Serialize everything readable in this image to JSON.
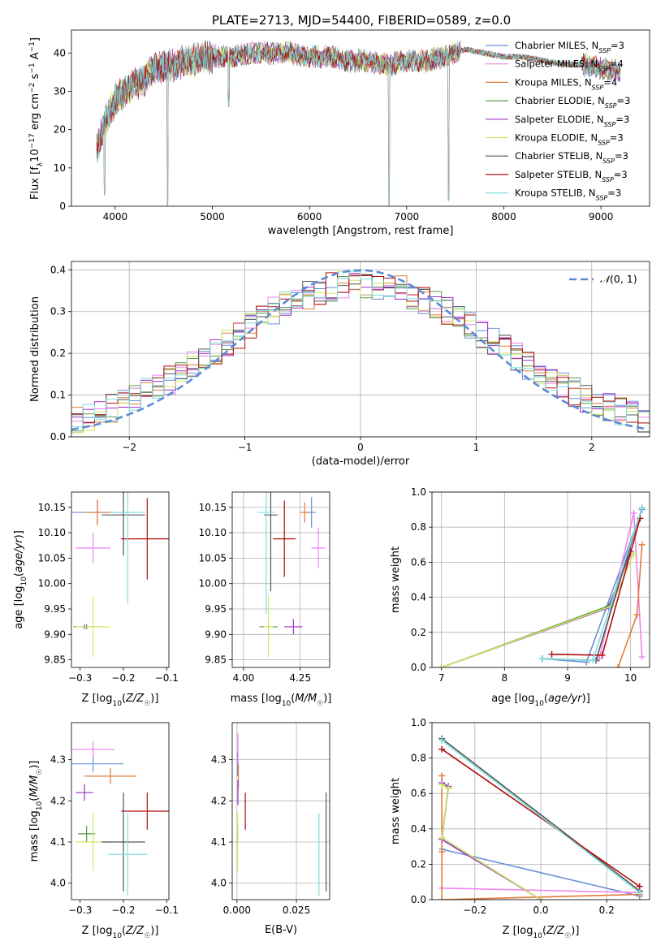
{
  "figure_title": "PLATE=2713, MJD=54400, FIBERID=0589, z=0.0",
  "colors": {
    "Chabrier MILES": "#6a8fd8",
    "Salpeter MILES": "#ee82ee",
    "Kroupa MILES": "#e07b39",
    "Chabrier ELODIE": "#5a9a46",
    "Salpeter ELODIE": "#9b30c8",
    "Kroupa ELODIE": "#cfe85f",
    "Chabrier STELIB": "#555555",
    "Salpeter STELIB": "#b00e0e",
    "Kroupa STELIB": "#7fdede",
    "gauss": "#5b8bd8"
  },
  "chart_data": [
    {
      "id": "spectrum",
      "type": "line",
      "xlabel": "wavelength [Angstrom, rest frame]",
      "ylabel": "Flux [f_λ 10^-17 erg cm^-2 s^-1 A^-1]",
      "xlim": [
        3550,
        9500
      ],
      "ylim": [
        0,
        46
      ],
      "xticks": [
        4000,
        5000,
        6000,
        7000,
        8000,
        9000
      ],
      "yticks": [
        0,
        10,
        20,
        30,
        40
      ],
      "legend_position": "top-right",
      "legend": [
        {
          "name": "Chabrier MILES",
          "suffix": "=3"
        },
        {
          "name": "Salpeter MILES",
          "suffix": "=4"
        },
        {
          "name": "Kroupa MILES",
          "suffix": "=4"
        },
        {
          "name": "Chabrier ELODIE",
          "suffix": "=3"
        },
        {
          "name": "Salpeter ELODIE",
          "suffix": "=3"
        },
        {
          "name": "Kroupa ELODIE",
          "suffix": "=3"
        },
        {
          "name": "Chabrier STELIB",
          "suffix": "=3"
        },
        {
          "name": "Salpeter STELIB",
          "suffix": "=3"
        },
        {
          "name": "Kroupa STELIB",
          "suffix": "=3"
        }
      ],
      "legend_sub": "N",
      "legend_sub_index": "SSP",
      "continuum": [
        [
          3800,
          14
        ],
        [
          3900,
          22
        ],
        [
          4000,
          28
        ],
        [
          4100,
          30
        ],
        [
          4200,
          32
        ],
        [
          4300,
          33
        ],
        [
          4400,
          36
        ],
        [
          4600,
          37
        ],
        [
          4800,
          38
        ],
        [
          5000,
          39
        ],
        [
          5200,
          39
        ],
        [
          5400,
          40
        ],
        [
          5600,
          40
        ],
        [
          5800,
          40
        ],
        [
          6000,
          39
        ],
        [
          6200,
          39
        ],
        [
          6400,
          38
        ],
        [
          6600,
          38
        ],
        [
          6800,
          37
        ],
        [
          7000,
          38
        ],
        [
          7200,
          38
        ],
        [
          7400,
          39
        ],
        [
          7600,
          41
        ],
        [
          7800,
          40
        ],
        [
          8000,
          39
        ],
        [
          8200,
          39
        ],
        [
          8400,
          38
        ],
        [
          8600,
          37
        ],
        [
          8800,
          37
        ],
        [
          9000,
          36
        ],
        [
          9200,
          35
        ]
      ],
      "dips": [
        [
          4540,
          0
        ],
        [
          5170,
          26
        ],
        [
          6820,
          0
        ],
        [
          6850,
          34
        ],
        [
          7430,
          1.5
        ],
        [
          3890,
          3
        ]
      ]
    },
    {
      "id": "residuals",
      "type": "line",
      "xlabel": "(data-model)/error",
      "ylabel": "Normed distribution",
      "xlim": [
        -2.5,
        2.5
      ],
      "ylim": [
        0,
        0.42
      ],
      "xticks": [
        -2,
        -1,
        0,
        1,
        2
      ],
      "yticks": [
        0.0,
        0.1,
        0.2,
        0.3,
        0.4
      ],
      "legend_label": "N(0,1)",
      "series": [
        {
          "name": "N(0,1)",
          "function": "standard normal pdf",
          "x_range": [
            -2.5,
            2.5
          ]
        }
      ]
    },
    {
      "id": "age_vs_Z",
      "type": "scatter",
      "xlabel": "Z [log10(Z/Z☉)]",
      "ylabel": "age [log10(age/yr)]",
      "xlim": [
        -0.32,
        -0.095
      ],
      "ylim": [
        9.835,
        10.18
      ],
      "xticks": [
        -0.3,
        -0.2,
        -0.1
      ],
      "yticks": [
        9.85,
        9.9,
        9.95,
        10.0,
        10.05,
        10.1,
        10.15
      ],
      "points": [
        {
          "name": "Chabrier MILES",
          "x": -0.26,
          "y": 10.14,
          "xe": 0.07,
          "ye": 0.025
        },
        {
          "name": "Salpeter MILES",
          "x": -0.27,
          "y": 10.07,
          "xe": 0.04,
          "ye": 0.03
        },
        {
          "name": "Kroupa MILES",
          "x": -0.26,
          "y": 10.14,
          "xe": 0.03,
          "ye": 0.025
        },
        {
          "name": "Chabrier ELODIE",
          "x": -0.285,
          "y": 9.915,
          "xe": 0.03,
          "ye": 0.005
        },
        {
          "name": "Salpeter ELODIE",
          "x": -0.29,
          "y": 9.915,
          "xe": 0.01,
          "ye": 0.005
        },
        {
          "name": "Kroupa ELODIE",
          "x": -0.27,
          "y": 9.915,
          "xe": 0.04,
          "ye": 0.06
        },
        {
          "name": "Chabrier STELIB",
          "x": -0.2,
          "y": 10.135,
          "xe": 0.05,
          "ye": 0.08
        },
        {
          "name": "Salpeter STELIB",
          "x": -0.145,
          "y": 10.088,
          "xe": 0.06,
          "ye": 0.08
        },
        {
          "name": "Kroupa STELIB",
          "x": -0.19,
          "y": 10.14,
          "xe": 0.04,
          "ye": 0.18
        }
      ]
    },
    {
      "id": "age_vs_mass",
      "type": "scatter",
      "xlabel": "mass [log10(M/M☉)]",
      "xlim": [
        3.95,
        4.38
      ],
      "ylim": [
        9.835,
        10.18
      ],
      "xticks": [
        4.0,
        4.25
      ],
      "yticks": [
        9.85,
        9.9,
        9.95,
        10.0,
        10.05,
        10.1,
        10.15
      ],
      "points": [
        {
          "name": "Chabrier MILES",
          "x": 4.3,
          "y": 10.14,
          "xe": 0.02,
          "ye": 0.03
        },
        {
          "name": "Salpeter MILES",
          "x": 4.33,
          "y": 10.07,
          "xe": 0.03,
          "ye": 0.04
        },
        {
          "name": "Kroupa MILES",
          "x": 4.27,
          "y": 10.14,
          "xe": 0.02,
          "ye": 0.02
        },
        {
          "name": "Chabrier ELODIE",
          "x": 4.11,
          "y": 9.915,
          "xe": 0.04,
          "ye": 0.005
        },
        {
          "name": "Salpeter ELODIE",
          "x": 4.22,
          "y": 9.915,
          "xe": 0.04,
          "ye": 0.015
        },
        {
          "name": "Kroupa ELODIE",
          "x": 4.11,
          "y": 9.915,
          "xe": 0.02,
          "ye": 0.06
        },
        {
          "name": "Chabrier STELIB",
          "x": 4.12,
          "y": 10.135,
          "xe": 0.03,
          "ye": 0.15
        },
        {
          "name": "Salpeter STELIB",
          "x": 4.18,
          "y": 10.088,
          "xe": 0.05,
          "ye": 0.075
        },
        {
          "name": "Kroupa STELIB",
          "x": 4.1,
          "y": 10.14,
          "xe": 0.04,
          "ye": 0.2
        }
      ]
    },
    {
      "id": "weight_vs_age",
      "type": "line",
      "xlabel": "age [log10(age/yr)]",
      "ylabel": "mass weight",
      "xlim": [
        6.85,
        10.3
      ],
      "ylim": [
        0,
        1.0
      ],
      "xticks": [
        7,
        8,
        9,
        10
      ],
      "yticks": [
        0.0,
        0.2,
        0.4,
        0.6,
        0.8,
        1.0
      ],
      "series": [
        {
          "name": "Chabrier MILES",
          "x": [
            8.6,
            9.3,
            10.18
          ],
          "y": [
            0.05,
            0.03,
            0.9
          ]
        },
        {
          "name": "Salpeter MILES",
          "x": [
            9.5,
            10.05,
            10.18
          ],
          "y": [
            0.05,
            0.88,
            0.06
          ]
        },
        {
          "name": "Kroupa MILES",
          "x": [
            9.8,
            10.1,
            10.18
          ],
          "y": [
            0.0,
            0.3,
            0.7
          ]
        },
        {
          "name": "Chabrier ELODIE",
          "x": [
            7.0,
            9.65,
            10.0
          ],
          "y": [
            0.0,
            0.35,
            0.65
          ]
        },
        {
          "name": "Salpeter ELODIE",
          "x": [
            7.0,
            9.65,
            10.0
          ],
          "y": [
            0.0,
            0.34,
            0.66
          ]
        },
        {
          "name": "Kroupa ELODIE",
          "x": [
            7.0,
            9.7,
            10.05
          ],
          "y": [
            0.0,
            0.35,
            0.65
          ]
        },
        {
          "name": "Chabrier STELIB",
          "x": [
            8.6,
            9.45,
            10.18
          ],
          "y": [
            0.05,
            0.04,
            0.91
          ]
        },
        {
          "name": "Salpeter STELIB",
          "x": [
            8.75,
            9.55,
            10.15
          ],
          "y": [
            0.075,
            0.07,
            0.85
          ]
        },
        {
          "name": "Kroupa STELIB",
          "x": [
            8.6,
            9.4,
            10.18
          ],
          "y": [
            0.05,
            0.04,
            0.91
          ]
        }
      ]
    },
    {
      "id": "mass_vs_Z",
      "type": "scatter",
      "xlabel": "Z [log10(Z/Z☉)]",
      "ylabel": "mass [log10(M/M☉)]",
      "xlim": [
        -0.32,
        -0.095
      ],
      "ylim": [
        3.96,
        4.39
      ],
      "xticks": [
        -0.3,
        -0.2,
        -0.1
      ],
      "yticks": [
        4.0,
        4.1,
        4.2,
        4.3
      ],
      "points": [
        {
          "name": "Chabrier MILES",
          "x": -0.27,
          "y": 4.29,
          "xe": 0.07,
          "ye": 0.02
        },
        {
          "name": "Salpeter MILES",
          "x": -0.27,
          "y": 4.325,
          "xe": 0.05,
          "ye": 0.02
        },
        {
          "name": "Kroupa MILES",
          "x": -0.23,
          "y": 4.26,
          "xe": 0.06,
          "ye": 0.02
        },
        {
          "name": "Chabrier ELODIE",
          "x": -0.285,
          "y": 4.12,
          "xe": 0.02,
          "ye": 0.02
        },
        {
          "name": "Salpeter ELODIE",
          "x": -0.29,
          "y": 4.22,
          "xe": 0.02,
          "ye": 0.02
        },
        {
          "name": "Kroupa ELODIE",
          "x": -0.27,
          "y": 4.1,
          "xe": 0.04,
          "ye": 0.07
        },
        {
          "name": "Chabrier STELIB",
          "x": -0.2,
          "y": 4.1,
          "xe": 0.05,
          "ye": 0.12
        },
        {
          "name": "Salpeter STELIB",
          "x": -0.145,
          "y": 4.175,
          "xe": 0.06,
          "ye": 0.045
        },
        {
          "name": "Kroupa STELIB",
          "x": -0.19,
          "y": 4.07,
          "xe": 0.045,
          "ye": 0.1
        }
      ]
    },
    {
      "id": "mass_vs_ebv",
      "type": "scatter",
      "xlabel": "E(B-V)",
      "xlim": [
        -0.002,
        0.039
      ],
      "ylim": [
        3.96,
        4.39
      ],
      "xticks": [
        0.0,
        0.025
      ],
      "xtick_labels": [
        "0.000",
        "0.025"
      ],
      "yticks": [
        4.0,
        4.1,
        4.2,
        4.3
      ],
      "points": [
        {
          "name": "Chabrier MILES",
          "x": 0.0002,
          "y": 4.29,
          "xe": 0.0,
          "ye": 0.03
        },
        {
          "name": "Salpeter MILES",
          "x": 0.0004,
          "y": 4.325,
          "xe": 0.0,
          "ye": 0.04
        },
        {
          "name": "Kroupa MILES",
          "x": 0.0006,
          "y": 4.26,
          "xe": 0.0,
          "ye": 0.03
        },
        {
          "name": "Chabrier ELODIE",
          "x": 0.0003,
          "y": 4.12,
          "xe": 0.0,
          "ye": 0.02
        },
        {
          "name": "Salpeter ELODIE",
          "x": 0.0004,
          "y": 4.22,
          "xe": 0.0,
          "ye": 0.03
        },
        {
          "name": "Kroupa ELODIE",
          "x": 0.0003,
          "y": 4.1,
          "xe": 0.0,
          "ye": 0.07
        },
        {
          "name": "Chabrier STELIB",
          "x": 0.0375,
          "y": 4.1,
          "xe": 0.0,
          "ye": 0.12
        },
        {
          "name": "Salpeter STELIB",
          "x": 0.0035,
          "y": 4.175,
          "xe": 0.0,
          "ye": 0.045
        },
        {
          "name": "Kroupa STELIB",
          "x": 0.0345,
          "y": 4.07,
          "xe": 0.0,
          "ye": 0.1
        }
      ]
    },
    {
      "id": "weight_vs_Z",
      "type": "line",
      "xlabel": "Z [log10(Z/Z☉)]",
      "ylabel": "mass weight",
      "xlim": [
        -0.33,
        0.33
      ],
      "ylim": [
        0,
        1.0
      ],
      "xticks": [
        -0.2,
        0.0,
        0.2
      ],
      "yticks": [
        0.0,
        0.2,
        0.4,
        0.6,
        0.8,
        1.0
      ],
      "series": [
        {
          "name": "Chabrier MILES",
          "x": [
            -0.3,
            0.3
          ],
          "y": [
            0.285,
            0.02
          ]
        },
        {
          "name": "Salpeter MILES",
          "x": [
            -0.3,
            0.3
          ],
          "y": [
            0.065,
            0.04
          ]
        },
        {
          "name": "Kroupa MILES",
          "x": [
            -0.3,
            -0.3,
            -0.3,
            0.3
          ],
          "y": [
            0.7,
            0.27,
            0.0,
            0.03
          ]
        },
        {
          "name": "Chabrier ELODIE",
          "x": [
            -0.3,
            -0.28,
            -0.3,
            0.0
          ],
          "y": [
            0.65,
            0.63,
            0.35,
            0.0
          ]
        },
        {
          "name": "Salpeter ELODIE",
          "x": [
            -0.3,
            -0.28,
            -0.3,
            0.0
          ],
          "y": [
            0.66,
            0.64,
            0.34,
            0.0
          ]
        },
        {
          "name": "Kroupa ELODIE",
          "x": [
            -0.3,
            -0.28,
            -0.3,
            0.0
          ],
          "y": [
            0.65,
            0.63,
            0.35,
            0.0
          ]
        },
        {
          "name": "Chabrier STELIB",
          "x": [
            -0.3,
            0.3
          ],
          "y": [
            0.91,
            0.05
          ]
        },
        {
          "name": "Salpeter STELIB",
          "x": [
            -0.3,
            0.3
          ],
          "y": [
            0.85,
            0.075
          ]
        },
        {
          "name": "Kroupa STELIB",
          "x": [
            -0.3,
            0.3
          ],
          "y": [
            0.9,
            0.04
          ]
        }
      ]
    }
  ]
}
